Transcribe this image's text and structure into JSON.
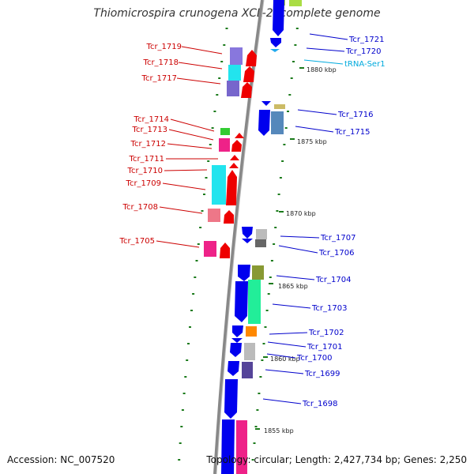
{
  "title": "Thiomicrospira crunogena XCL-2, complete genome",
  "footer": {
    "accession": "Accession: NC_007520",
    "summary": "Topology: circular; Length: 2,427,734 bp; Genes: 2,250"
  },
  "colors": {
    "minus_strand_label": "#cc0000",
    "plus_strand_label": "#0000cc",
    "rna_label": "#00aadd",
    "backbone": "#888888",
    "tick": "#1a7a1a"
  },
  "scale_labels": [
    "1880 kbp",
    "1875 kbp",
    "1870 kbp",
    "1865 kbp",
    "1860 kbp",
    "1855 kbp"
  ],
  "left_labels": [
    "Tcr_1719",
    "Tcr_1718",
    "Tcr_1717",
    "Tcr_1714",
    "Tcr_1713",
    "Tcr_1712",
    "Tcr_1711",
    "Tcr_1710",
    "Tcr_1709",
    "Tcr_1708",
    "Tcr_1705"
  ],
  "right_labels": [
    "Tcr_1721",
    "Tcr_1720",
    "tRNA-Ser1",
    "Tcr_1716",
    "Tcr_1715",
    "Tcr_1707",
    "Tcr_1706",
    "Tcr_1704",
    "Tcr_1703",
    "Tcr_1702",
    "Tcr_1701",
    "Tcr_1700",
    "Tcr_1699",
    "Tcr_1698"
  ]
}
